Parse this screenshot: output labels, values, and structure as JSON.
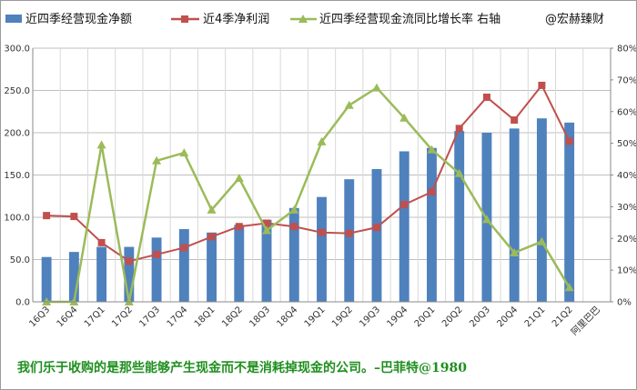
{
  "chart_data": {
    "type": "bar",
    "categories": [
      "16Q3",
      "16Q4",
      "17Q1",
      "17Q2",
      "17Q3",
      "17Q4",
      "18Q1",
      "18Q2",
      "18Q3",
      "18Q4",
      "19Q1",
      "19Q2",
      "19Q3",
      "19Q4",
      "20Q1",
      "20Q2",
      "20Q3",
      "20Q4",
      "21Q1",
      "21Q2",
      "阿里巴巴"
    ],
    "series": [
      {
        "name": "近四季经营现金净额",
        "type": "bar",
        "axis": "left",
        "color": "#4f81bd",
        "values": [
          53,
          59,
          65,
          65,
          76,
          86,
          82,
          91,
          97,
          111,
          124,
          145,
          157,
          178,
          182,
          202,
          200,
          205,
          217,
          212,
          null
        ]
      },
      {
        "name": "近4季净利润",
        "type": "line",
        "axis": "left",
        "color": "#c0504d",
        "marker": "square",
        "values": [
          102,
          101,
          70,
          48,
          56,
          64,
          77,
          89,
          93,
          89,
          82,
          81,
          88,
          115,
          130,
          205,
          242,
          215,
          256,
          190,
          null
        ]
      },
      {
        "name": "近四季经营现金流同比增长率 右轴",
        "type": "line",
        "axis": "right",
        "color": "#9bbb59",
        "marker": "triangle",
        "values": [
          0.0,
          0.0,
          0.495,
          0.0,
          0.445,
          0.47,
          0.29,
          0.39,
          0.225,
          0.29,
          0.505,
          0.62,
          0.675,
          0.58,
          0.48,
          0.405,
          0.26,
          0.155,
          0.19,
          0.045,
          null
        ]
      }
    ],
    "left_axis": {
      "min": 0,
      "max": 300,
      "step": 50,
      "tick_labels": [
        "0.0",
        "50.0",
        "100.0",
        "150.0",
        "200.0",
        "250.0",
        "300.0"
      ]
    },
    "right_axis": {
      "min": 0,
      "max": 0.8,
      "step": 0.1,
      "tick_labels": [
        "0%",
        "10%",
        "20%",
        "30%",
        "40%",
        "50%",
        "60%",
        "70%",
        "80%"
      ]
    },
    "grid": true,
    "legend_position": "top",
    "watermark": "@宏赫臻财",
    "caption": "我们乐于收购的是那些能够产生现金而不是消耗掉现金的公司。–巴菲特@1980"
  }
}
